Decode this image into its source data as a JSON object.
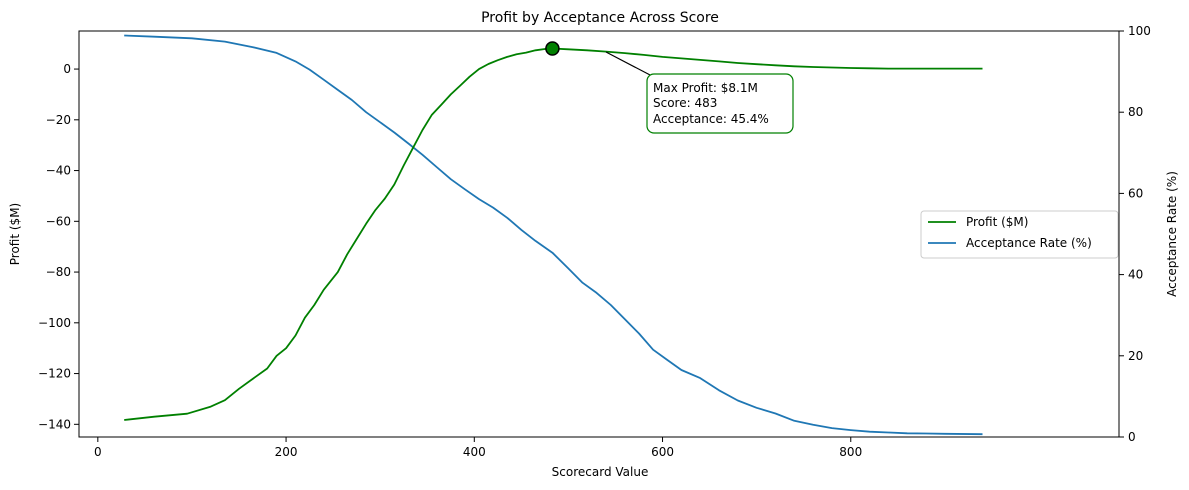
{
  "chart_data": {
    "type": "line",
    "title": "Profit by Acceptance Across Score",
    "xlabel": "Scorecard Value",
    "ylabel_left": "Profit ($M)",
    "ylabel_right": "Acceptance Rate (%)",
    "xlim": [
      -20,
      1085
    ],
    "ylim_left": [
      -145,
      15
    ],
    "ylim_right": [
      0,
      100
    ],
    "x_ticks": [
      0,
      200,
      400,
      600,
      800
    ],
    "y_left_ticks": [
      0,
      -20,
      -40,
      -60,
      -80,
      -100,
      -120,
      -140
    ],
    "y_right_ticks": [
      0,
      20,
      40,
      60,
      80,
      100
    ],
    "grid": false,
    "legend_position": "center-right",
    "series": [
      {
        "name": "Profit ($M)",
        "axis": "left",
        "color": "#008000",
        "x": [
          28,
          60,
          95,
          120,
          135,
          150,
          165,
          180,
          190,
          200,
          210,
          220,
          230,
          240,
          255,
          265,
          275,
          285,
          295,
          305,
          315,
          325,
          335,
          345,
          355,
          365,
          375,
          385,
          395,
          405,
          415,
          425,
          435,
          445,
          455,
          465,
          475,
          483,
          500,
          520,
          540,
          560,
          580,
          600,
          620,
          640,
          660,
          680,
          700,
          720,
          740,
          760,
          780,
          800,
          820,
          840,
          860,
          880,
          900,
          940
        ],
        "y": [
          -138.3,
          -137,
          -135.8,
          -133,
          -130.5,
          -126,
          -122,
          -118,
          -113,
          -110,
          -105,
          -98,
          -93,
          -87,
          -80,
          -73,
          -67,
          -61,
          -55.5,
          -51,
          -45.5,
          -38,
          -31,
          -24,
          -18,
          -14,
          -10,
          -6.5,
          -3,
          0,
          2,
          3.5,
          4.8,
          5.8,
          6.5,
          7.4,
          7.9,
          8.1,
          7.8,
          7.4,
          6.9,
          6.3,
          5.6,
          4.8,
          4.2,
          3.6,
          3.0,
          2.4,
          1.9,
          1.5,
          1.1,
          0.8,
          0.6,
          0.4,
          0.3,
          0.2,
          0.2,
          0.2,
          0.2,
          0.2
        ]
      },
      {
        "name": "Acceptance Rate (%)",
        "axis": "right",
        "color": "#1f77b4",
        "x": [
          28,
          60,
          100,
          135,
          165,
          190,
          210,
          225,
          240,
          255,
          270,
          285,
          300,
          315,
          330,
          345,
          360,
          375,
          390,
          405,
          420,
          435,
          450,
          465,
          483,
          500,
          515,
          530,
          545,
          560,
          575,
          590,
          605,
          620,
          640,
          660,
          680,
          700,
          720,
          740,
          760,
          780,
          800,
          820,
          840,
          860,
          880,
          900,
          940
        ],
        "y": [
          98.9,
          98.6,
          98.2,
          97.4,
          96.0,
          94.6,
          92.5,
          90.5,
          88.0,
          85.5,
          83.0,
          80.0,
          77.5,
          75.0,
          72.3,
          69.5,
          66.5,
          63.5,
          61.0,
          58.6,
          56.5,
          54.0,
          51.0,
          48.3,
          45.4,
          41.5,
          38.0,
          35.5,
          32.5,
          29.0,
          25.5,
          21.5,
          19.0,
          16.5,
          14.5,
          11.5,
          9.0,
          7.2,
          5.8,
          4.0,
          3.0,
          2.2,
          1.7,
          1.3,
          1.1,
          0.9,
          0.85,
          0.8,
          0.7
        ]
      }
    ],
    "max_point": {
      "x": 483,
      "y": 8.1
    },
    "annotation_lines": [
      "Max Profit: $8.1M",
      "Score: 483",
      "Acceptance: 45.4%"
    ]
  }
}
